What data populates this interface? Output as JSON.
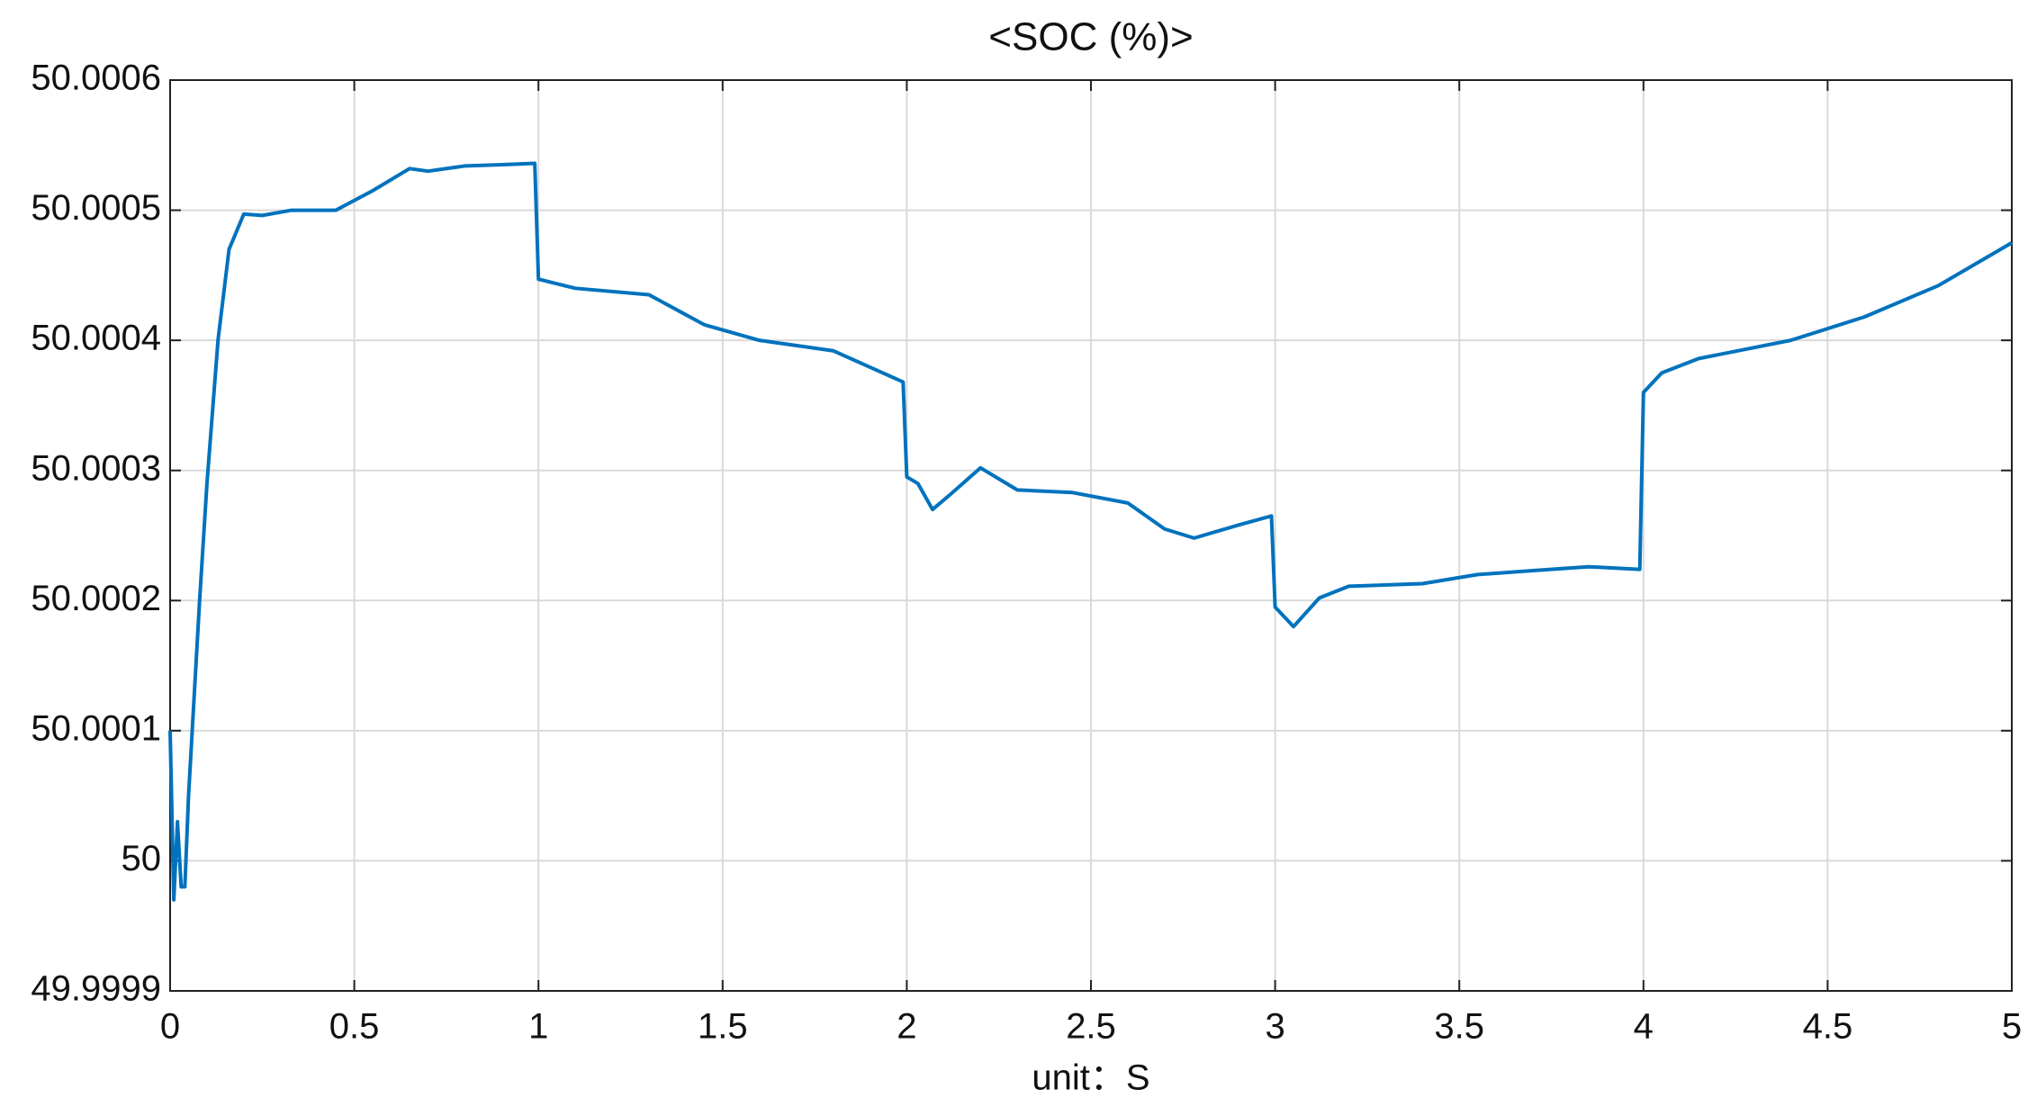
{
  "chart_data": {
    "type": "line",
    "title": "<SOC (%)>",
    "x_label": "unit：S",
    "x": [
      0,
      0.01,
      0.02,
      0.03,
      0.04,
      0.05,
      0.08,
      0.1,
      0.13,
      0.16,
      0.2,
      0.25,
      0.33,
      0.45,
      0.55,
      0.65,
      0.7,
      0.8,
      0.9,
      0.99,
      1.0,
      1.1,
      1.3,
      1.45,
      1.6,
      1.8,
      1.99,
      2.0,
      2.03,
      2.07,
      2.12,
      2.2,
      2.3,
      2.45,
      2.6,
      2.7,
      2.78,
      2.9,
      2.99,
      3.0,
      3.05,
      3.12,
      3.2,
      3.4,
      3.55,
      3.7,
      3.85,
      3.99,
      4.0,
      4.05,
      4.15,
      4.4,
      4.6,
      4.8,
      5.0
    ],
    "series": [
      {
        "color": "#0072bd",
        "values": [
          50.0001,
          49.99997,
          50.00003,
          49.99998,
          49.99998,
          50.00005,
          50.0002,
          50.00029,
          50.0004,
          50.00047,
          50.000497,
          50.000496,
          50.0005,
          50.0005,
          50.000515,
          50.000532,
          50.00053,
          50.000534,
          50.000535,
          50.000536,
          50.000447,
          50.00044,
          50.000435,
          50.000412,
          50.0004,
          50.000392,
          50.000368,
          50.000295,
          50.00029,
          50.00027,
          50.000282,
          50.000302,
          50.000285,
          50.000283,
          50.000275,
          50.000255,
          50.000248,
          50.000258,
          50.000265,
          50.000195,
          50.00018,
          50.000202,
          50.000211,
          50.000213,
          50.00022,
          50.000223,
          50.000226,
          50.000224,
          50.00036,
          50.000375,
          50.000386,
          50.0004,
          50.000418,
          50.000442,
          50.000475
        ]
      }
    ],
    "xlim": [
      0,
      5
    ],
    "xticks": [
      0,
      0.5,
      1,
      1.5,
      2,
      2.5,
      3,
      3.5,
      4,
      4.5,
      5
    ],
    "ylim": [
      49.9999,
      50.0006
    ],
    "yticks": [
      49.9999,
      50,
      50.0001,
      50.0002,
      50.0003,
      50.0004,
      50.0005,
      50.0006
    ],
    "grid": true
  }
}
